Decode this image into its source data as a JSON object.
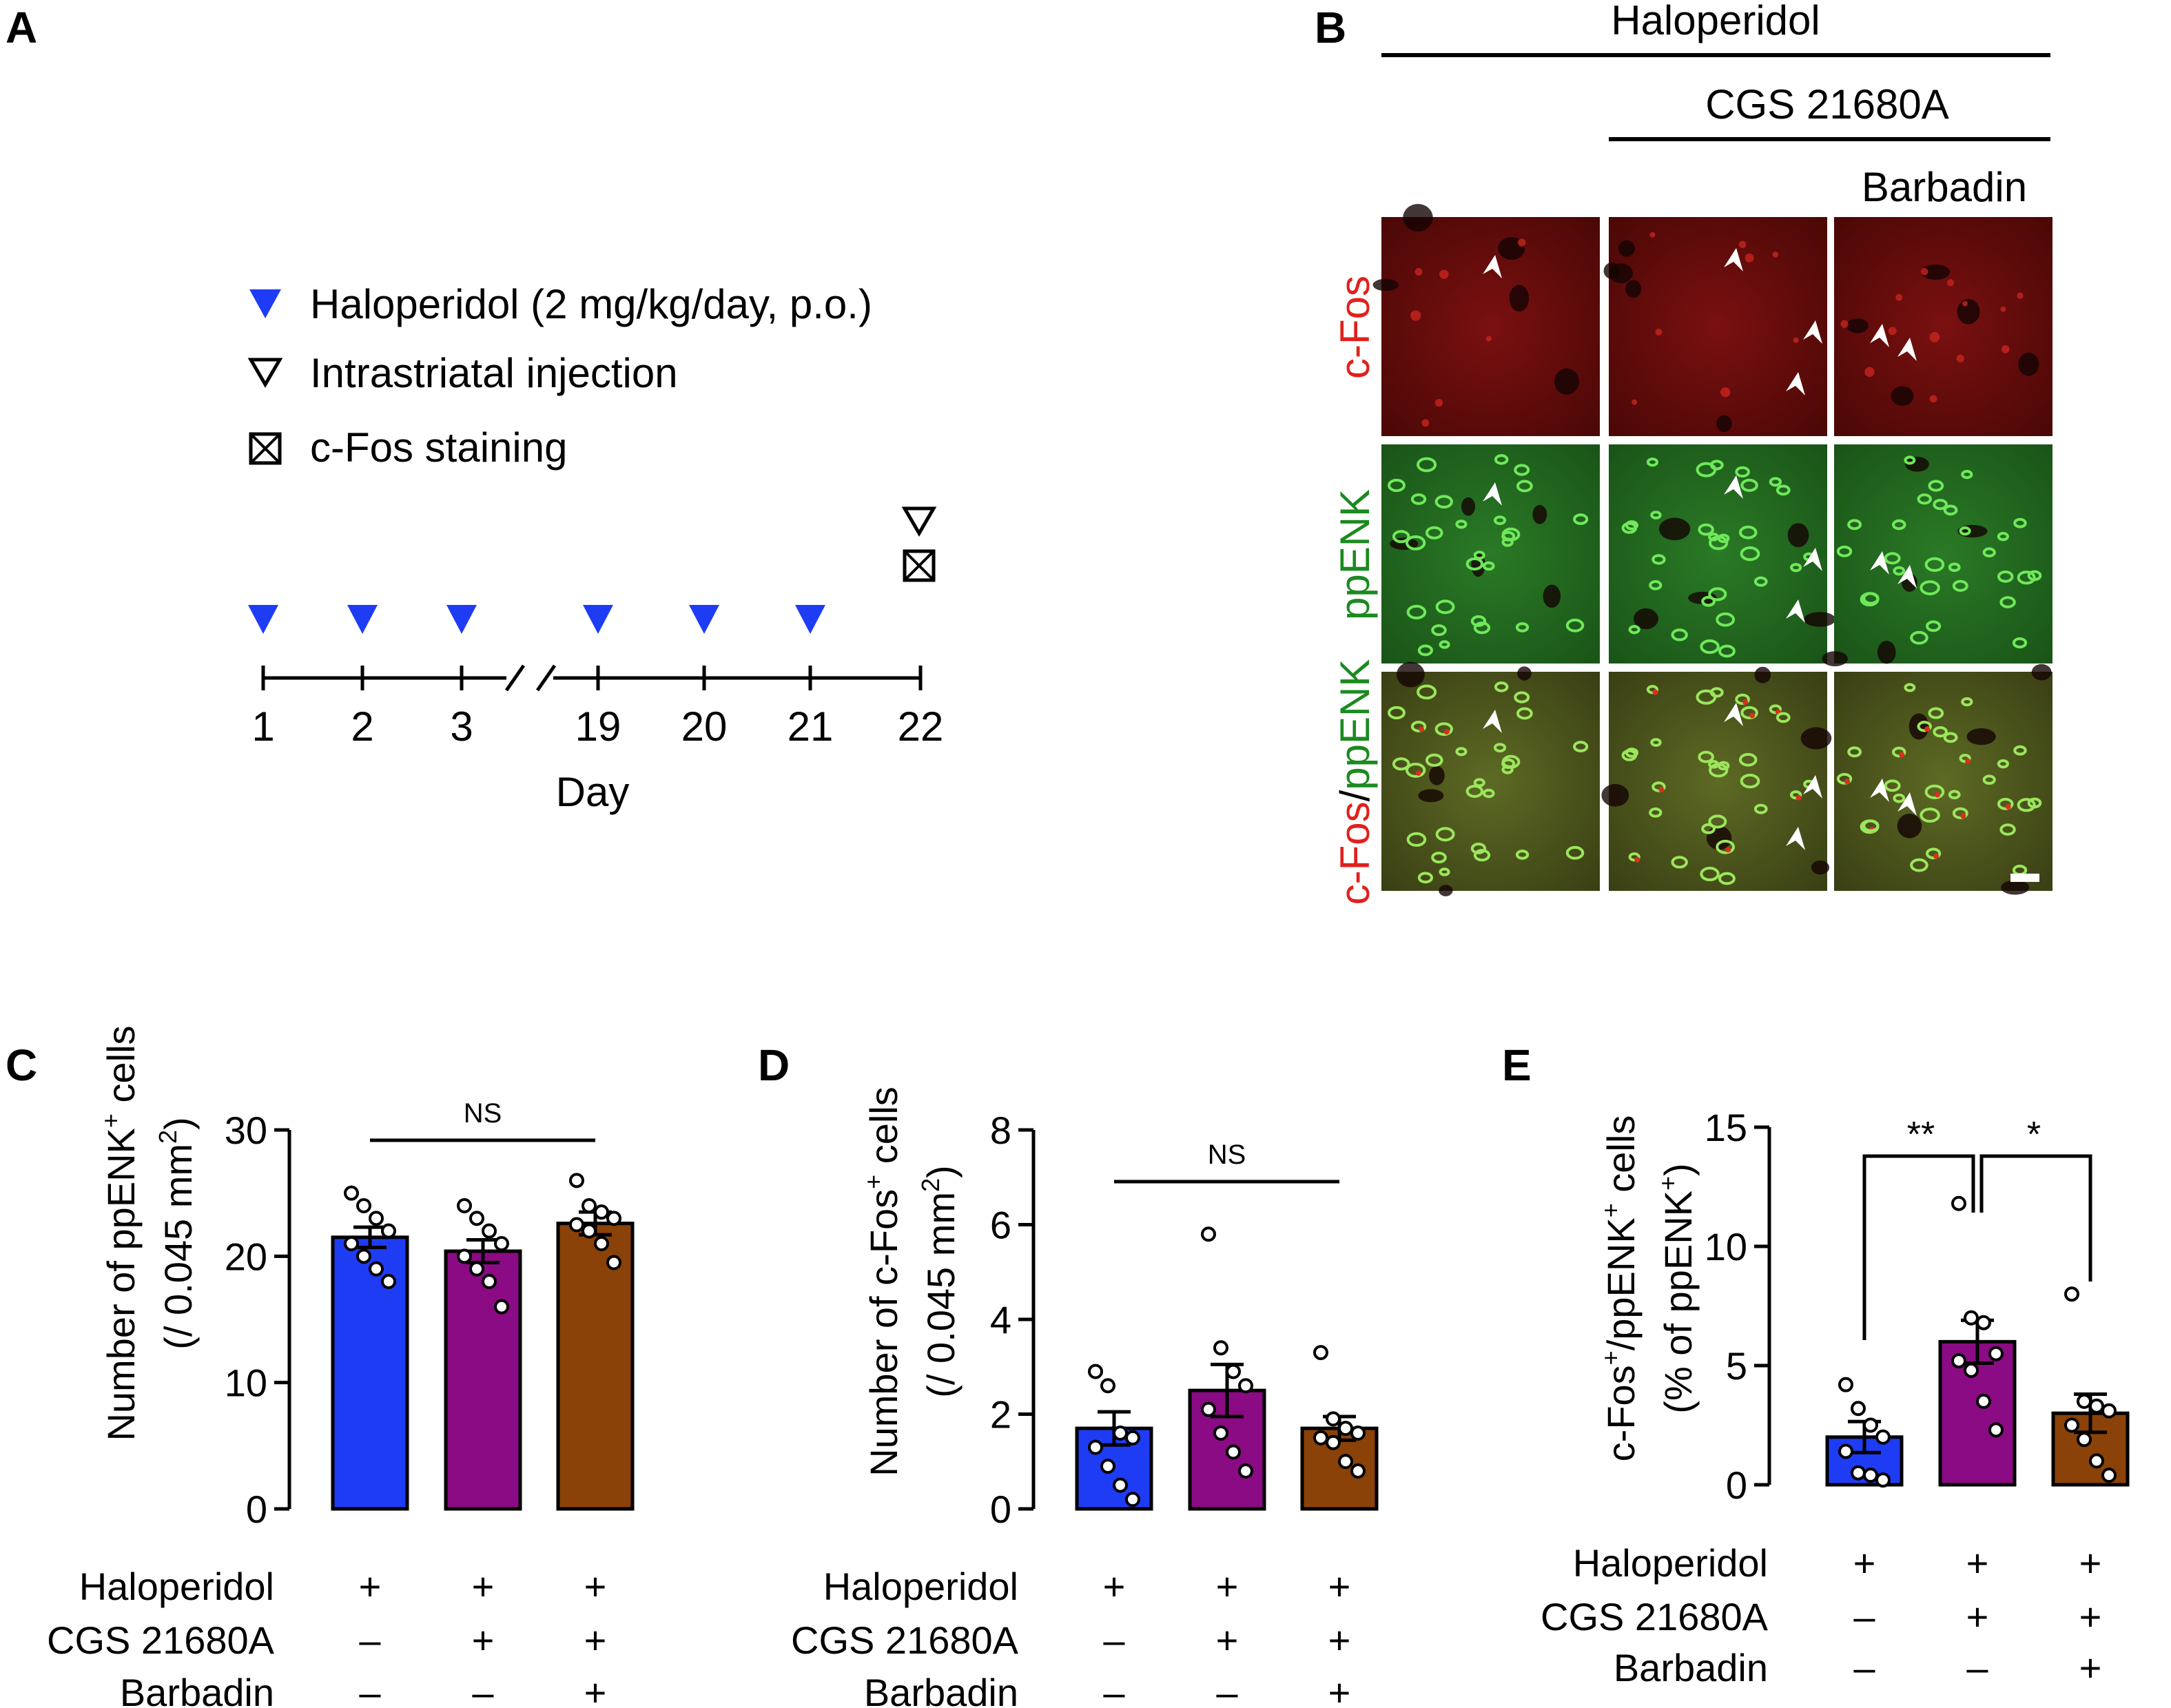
{
  "colors": {
    "haloperidol": "#1f3cf5",
    "cgs": "#8a0b83",
    "barbadin": "#8a4208",
    "cfos": "#e0211c",
    "ppenk": "#1b8a1f",
    "triangle": "#1f3cf5"
  },
  "panel_labels": {
    "a": "A",
    "b": "B",
    "c": "C",
    "d": "D",
    "e": "E"
  },
  "panel_a": {
    "legend": [
      {
        "icon": "filled-blue-triangle-icon",
        "text": "Haloperidol (2 mg/kg/day, p.o.)"
      },
      {
        "icon": "open-triangle-icon",
        "text": "Intrastriatal injection"
      },
      {
        "icon": "crossed-box-icon",
        "text": "c-Fos staining"
      }
    ],
    "days": [
      "1",
      "2",
      "3",
      "19",
      "20",
      "21",
      "22"
    ],
    "haloperidol_days": [
      "1",
      "2",
      "3",
      "19",
      "20",
      "21"
    ],
    "injection_day": "22",
    "xlabel": "Day"
  },
  "panel_b": {
    "header_haloperidol": "Haloperidol",
    "header_cgs": "CGS 21680A",
    "header_barbadin": "Barbadin",
    "row_labels": {
      "cfos": "c-Fos",
      "ppenk": "ppENK",
      "merge_a": "c-Fos",
      "merge_sep": "/",
      "merge_b": "ppENK"
    }
  },
  "conditions": {
    "rows": [
      "Haloperidol",
      "CGS 21680A",
      "Barbadin"
    ],
    "groups": [
      {
        "Haloperidol": "+",
        "CGS 21680A": "–",
        "Barbadin": "–"
      },
      {
        "Haloperidol": "+",
        "CGS 21680A": "+",
        "Barbadin": "–"
      },
      {
        "Haloperidol": "+",
        "CGS 21680A": "+",
        "Barbadin": "+"
      }
    ]
  },
  "chart_data": [
    {
      "panel": "C",
      "type": "bar",
      "ylabel_line1": "Number of ppENK",
      "ylabel_sup": "+",
      "ylabel_line1_end": " cells",
      "ylabel_line2": "(/ 0.045 mm",
      "ylabel_line2_sup": "2",
      "ylabel_line2_end": ")",
      "ylim": [
        0,
        30
      ],
      "yticks": [
        "0",
        "10",
        "20",
        "30"
      ],
      "categories": [
        "Haloperidol",
        "Haloperidol + CGS 21680A",
        "Haloperidol + CGS 21680A + Barbadin"
      ],
      "values": [
        21.5,
        20.4,
        22.6
      ],
      "sem": [
        0.8,
        0.9,
        0.9
      ],
      "points": [
        [
          25,
          24,
          23,
          22,
          21,
          20,
          19,
          18
        ],
        [
          24,
          23,
          22,
          21,
          20,
          19,
          18,
          16
        ],
        [
          26,
          24,
          23.5,
          23,
          22.5,
          22,
          21,
          19.5
        ]
      ],
      "significance": [
        {
          "from": 0,
          "to": 2,
          "label": "NS"
        }
      ]
    },
    {
      "panel": "D",
      "type": "bar",
      "ylabel_line1": "Number of c-Fos",
      "ylabel_sup": "+",
      "ylabel_line1_end": " cells",
      "ylabel_line2": "(/ 0.045 mm",
      "ylabel_line2_sup": "2",
      "ylabel_line2_end": ")",
      "ylim": [
        0,
        8
      ],
      "yticks": [
        "0",
        "2",
        "4",
        "6",
        "8"
      ],
      "categories": [
        "Haloperidol",
        "Haloperidol + CGS 21680A",
        "Haloperidol + CGS 21680A + Barbadin"
      ],
      "values": [
        1.7,
        2.5,
        1.7
      ],
      "sem": [
        0.35,
        0.55,
        0.25
      ],
      "points": [
        [
          2.9,
          2.6,
          1.6,
          1.5,
          1.3,
          0.9,
          0.5,
          0.2
        ],
        [
          5.8,
          3.4,
          2.9,
          2.6,
          2.1,
          1.6,
          1.2,
          0.8
        ],
        [
          3.3,
          1.9,
          1.7,
          1.6,
          1.5,
          1.4,
          1.0,
          0.8
        ]
      ],
      "significance": [
        {
          "from": 0,
          "to": 2,
          "label": "NS"
        }
      ]
    },
    {
      "panel": "E",
      "type": "bar",
      "ylabel_line1_pre": "c-Fos",
      "ylabel_line1_pre_sup": "+",
      "ylabel_line1": "/ppENK",
      "ylabel_sup": "+",
      "ylabel_line1_end": " cells",
      "ylabel_line2": "(% of ppENK",
      "ylabel_line2_sup": "+",
      "ylabel_line2_end": ")",
      "ylim": [
        0,
        15
      ],
      "yticks": [
        "0",
        "5",
        "10",
        "15"
      ],
      "categories": [
        "Haloperidol",
        "Haloperidol + CGS 21680A",
        "Haloperidol + CGS 21680A + Barbadin"
      ],
      "values": [
        2.0,
        6.0,
        3.0
      ],
      "sem": [
        0.65,
        0.9,
        0.8
      ],
      "points": [
        [
          4.2,
          3.2,
          2.5,
          2.0,
          1.4,
          0.5,
          0.4,
          0.2
        ],
        [
          11.8,
          7.0,
          6.8,
          5.5,
          5.2,
          4.8,
          3.5,
          2.3
        ],
        [
          8.0,
          3.5,
          3.3,
          3.1,
          2.5,
          1.9,
          1.0,
          0.4
        ]
      ],
      "significance": [
        {
          "from": 0,
          "to": 1,
          "label": "**"
        },
        {
          "from": 1,
          "to": 2,
          "label": "*"
        }
      ]
    }
  ]
}
